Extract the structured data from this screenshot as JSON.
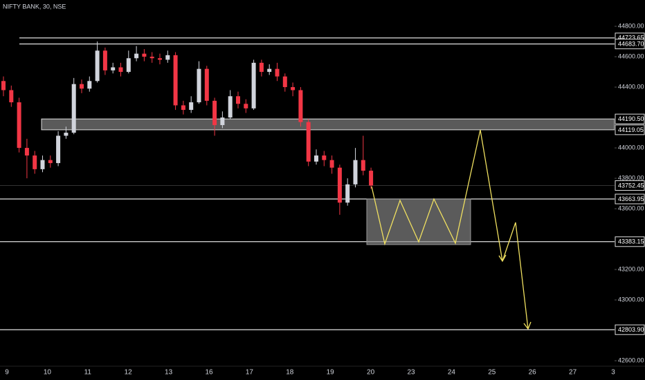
{
  "chart_data": {
    "type": "candlestick",
    "title": "NIFTY BANK, 30, NSE",
    "open": [
      44440,
      44380,
      44300,
      44000,
      43950,
      43860,
      43920,
      43900,
      44080,
      44100,
      44420,
      44390,
      44440,
      44640,
      44510,
      44530,
      44500,
      44590,
      44620,
      44600,
      44590,
      44580,
      44610,
      44280,
      44250,
      44300,
      44520,
      44310,
      44150,
      44200,
      44340,
      44290,
      44260,
      44560,
      44500,
      44520,
      44470,
      44400,
      44380,
      44170,
      43910,
      43950,
      43920,
      43870,
      43640,
      43760,
      43920,
      43850
    ],
    "high": [
      44470,
      44410,
      44330,
      44060,
      43980,
      43950,
      43950,
      44110,
      44140,
      44460,
      44450,
      44470,
      44700,
      44660,
      44560,
      44560,
      44640,
      44670,
      44650,
      44630,
      44620,
      44640,
      44630,
      44310,
      44340,
      44570,
      44540,
      44330,
      44240,
      44380,
      44370,
      44320,
      44580,
      44580,
      44550,
      44560,
      44490,
      44430,
      44400,
      44190,
      43990,
      43980,
      43950,
      43890,
      43800,
      44000,
      44080,
      43870
    ],
    "low": [
      44340,
      44270,
      43970,
      43800,
      43830,
      43840,
      43870,
      43880,
      44060,
      44090,
      44360,
      44370,
      44430,
      44480,
      44490,
      44470,
      44490,
      44570,
      44570,
      44560,
      44550,
      44560,
      44250,
      44220,
      44230,
      44290,
      44280,
      44080,
      44130,
      44190,
      44260,
      44230,
      44250,
      44470,
      44480,
      44440,
      44370,
      44340,
      44140,
      43880,
      43890,
      43880,
      43830,
      43560,
      43620,
      43740,
      43820,
      43730
    ],
    "close": [
      44380,
      44300,
      44000,
      43950,
      43860,
      43920,
      43900,
      44080,
      44100,
      44420,
      44390,
      44440,
      44640,
      44510,
      44530,
      44500,
      44590,
      44620,
      44600,
      44590,
      44580,
      44610,
      44280,
      44250,
      44300,
      44520,
      44310,
      44150,
      44200,
      44340,
      44290,
      44260,
      44560,
      44500,
      44520,
      44470,
      44400,
      44380,
      44170,
      43910,
      43950,
      43920,
      43870,
      43640,
      43760,
      43920,
      43850,
      43752.45
    ],
    "up_color": "#d1d4dc",
    "down_color": "#f23645",
    "ylim": [
      42564,
      44973
    ],
    "yticks": [
      {
        "value": 44800,
        "label": "44800.00"
      },
      {
        "value": 44600,
        "label": "44600.00"
      },
      {
        "value": 44400,
        "label": "44400.00"
      },
      {
        "value": 44000,
        "label": "44000.00"
      },
      {
        "value": 43800,
        "label": "43800.00"
      },
      {
        "value": 43600,
        "label": "43600.00"
      },
      {
        "value": 43200,
        "label": "43200.00"
      },
      {
        "value": 43000,
        "label": "43000.00"
      },
      {
        "value": 42600,
        "label": "42600.00"
      }
    ],
    "xticks": [
      "9",
      "10",
      "11",
      "12",
      "13",
      "16",
      "17",
      "18",
      "19",
      "20",
      "23",
      "24",
      "25",
      "26",
      "27",
      "3"
    ],
    "levels": [
      {
        "value": 44723.65,
        "label": "44723.65"
      },
      {
        "value": 44683.7,
        "label": "44683.70"
      },
      {
        "value": 43663.95,
        "label": "43663.95"
      },
      {
        "value": 43383.15,
        "label": "43383.15"
      },
      {
        "value": 42803.9,
        "label": "42803.90"
      }
    ],
    "zone": [
      {
        "value": 44190.5,
        "label": "44190.50"
      },
      {
        "value": 44119.05,
        "label": "44119.05"
      }
    ]
  }
}
